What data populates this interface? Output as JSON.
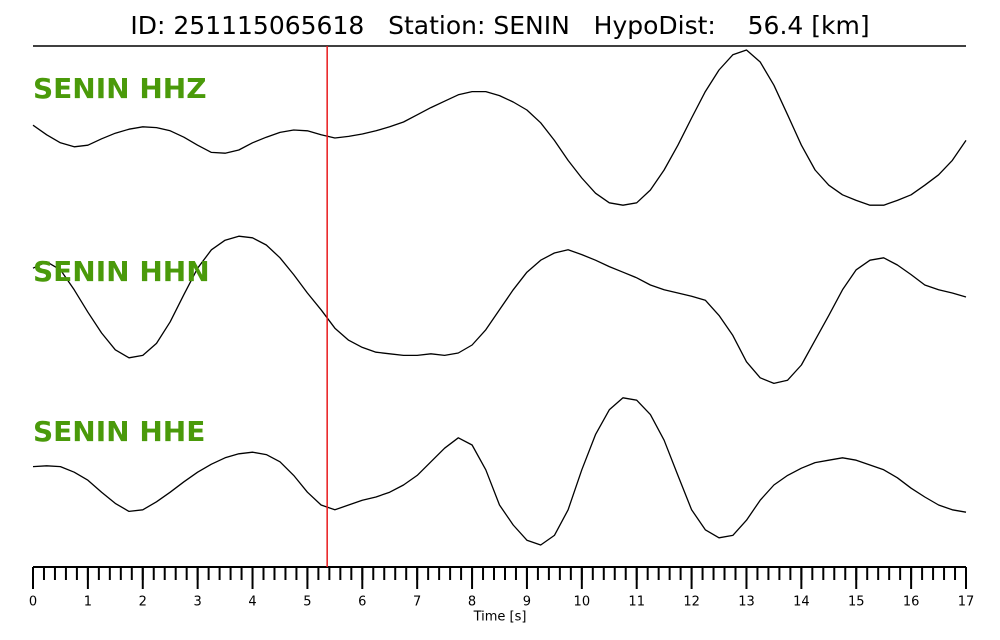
{
  "chart_data": {
    "type": "line",
    "title": "ID: 251115065618   Station: SENIN   HypoDist:    56.4 [km]",
    "xlabel": "Time [s]",
    "xlim": [
      0,
      17
    ],
    "xticks": [
      0,
      1,
      2,
      3,
      4,
      5,
      6,
      7,
      8,
      9,
      10,
      11,
      12,
      13,
      14,
      15,
      16,
      17
    ],
    "xminor": 0.2,
    "ylim": [
      -1,
      1
    ],
    "pick": 5.36,
    "pick_color": "#e8191c",
    "label_color": "#4a9a0a",
    "x": [
      0,
      0.25,
      0.5,
      0.75,
      1,
      1.25,
      1.5,
      1.75,
      2,
      2.25,
      2.5,
      2.75,
      3,
      3.25,
      3.5,
      3.75,
      4,
      4.25,
      4.5,
      4.75,
      5,
      5.25,
      5.5,
      5.75,
      6,
      6.25,
      6.5,
      6.75,
      7,
      7.25,
      7.5,
      7.75,
      8,
      8.25,
      8.5,
      8.75,
      9,
      9.25,
      9.5,
      9.75,
      10,
      10.25,
      10.5,
      10.75,
      11,
      11.25,
      11.5,
      11.75,
      12,
      12.25,
      12.5,
      12.75,
      13,
      13.25,
      13.5,
      13.75,
      14,
      14.25,
      14.5,
      14.75,
      15,
      15.25,
      15.5,
      15.75,
      16,
      16.25,
      16.5,
      16.75,
      17
    ],
    "series": [
      {
        "name": "SENIN HHZ",
        "color": "#000000",
        "values": [
          0.06,
          -0.06,
          -0.16,
          -0.21,
          -0.19,
          -0.11,
          -0.04,
          0.01,
          0.04,
          0.03,
          -0.01,
          -0.09,
          -0.19,
          -0.28,
          -0.29,
          -0.25,
          -0.16,
          -0.09,
          -0.03,
          0,
          -0.01,
          -0.06,
          -0.1,
          -0.08,
          -0.05,
          -0.01,
          0.04,
          0.1,
          0.19,
          0.28,
          0.36,
          0.44,
          0.48,
          0.48,
          0.43,
          0.35,
          0.25,
          0.09,
          -0.13,
          -0.38,
          -0.6,
          -0.79,
          -0.91,
          -0.94,
          -0.91,
          -0.75,
          -0.5,
          -0.19,
          0.15,
          0.48,
          0.75,
          0.94,
          1.0,
          0.85,
          0.56,
          0.19,
          -0.19,
          -0.5,
          -0.69,
          -0.81,
          -0.88,
          -0.94,
          -0.94,
          -0.88,
          -0.81,
          -0.69,
          -0.56,
          -0.38,
          -0.13
        ]
      },
      {
        "name": "SENIN HHN",
        "color": "#000000",
        "values": [
          0.56,
          0.64,
          0.54,
          0.29,
          0.01,
          -0.25,
          -0.46,
          -0.56,
          -0.53,
          -0.38,
          -0.11,
          0.23,
          0.56,
          0.79,
          0.91,
          0.96,
          0.94,
          0.85,
          0.69,
          0.48,
          0.25,
          0.04,
          -0.19,
          -0.34,
          -0.43,
          -0.49,
          -0.51,
          -0.53,
          -0.53,
          -0.51,
          -0.53,
          -0.5,
          -0.4,
          -0.21,
          0.04,
          0.29,
          0.51,
          0.66,
          0.75,
          0.79,
          0.73,
          0.66,
          0.58,
          0.51,
          0.44,
          0.35,
          0.29,
          0.25,
          0.21,
          0.16,
          -0.03,
          -0.28,
          -0.61,
          -0.81,
          -0.88,
          -0.84,
          -0.65,
          -0.34,
          -0.03,
          0.29,
          0.54,
          0.66,
          0.69,
          0.6,
          0.48,
          0.35,
          0.29,
          0.25,
          0.2
        ]
      },
      {
        "name": "SENIN HHE",
        "color": "#000000",
        "values": [
          0.08,
          0.09,
          0.08,
          0.01,
          -0.09,
          -0.24,
          -0.38,
          -0.48,
          -0.46,
          -0.36,
          -0.24,
          -0.11,
          0.01,
          0.11,
          0.19,
          0.24,
          0.26,
          0.23,
          0.14,
          -0.03,
          -0.24,
          -0.4,
          -0.46,
          -0.4,
          -0.34,
          -0.3,
          -0.24,
          -0.15,
          -0.03,
          0.14,
          0.31,
          0.44,
          0.35,
          0.04,
          -0.4,
          -0.65,
          -0.84,
          -0.9,
          -0.78,
          -0.46,
          0.04,
          0.48,
          0.79,
          0.94,
          0.91,
          0.73,
          0.41,
          -0.03,
          -0.46,
          -0.71,
          -0.81,
          -0.78,
          -0.59,
          -0.34,
          -0.15,
          -0.03,
          0.06,
          0.13,
          0.16,
          0.19,
          0.16,
          0.1,
          0.04,
          -0.06,
          -0.19,
          -0.3,
          -0.4,
          -0.46,
          -0.49
        ]
      }
    ]
  }
}
